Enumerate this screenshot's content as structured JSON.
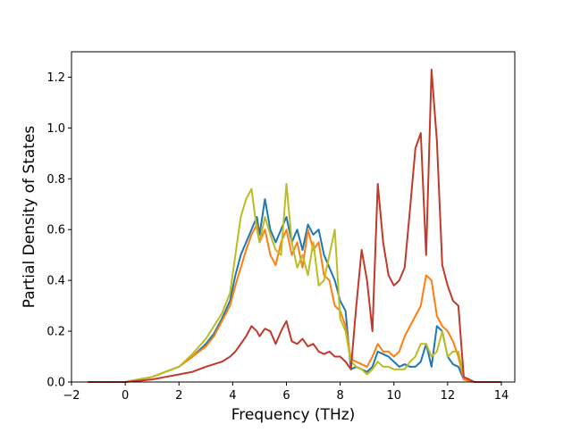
{
  "chart_data": {
    "type": "line",
    "title": "",
    "xlabel": "Frequency (THz)",
    "ylabel": "Partial Density of States",
    "xlim": [
      -2,
      14.5
    ],
    "ylim": [
      0,
      1.3
    ],
    "xticks": [
      "−2",
      "0",
      "2",
      "4",
      "6",
      "8",
      "10",
      "12",
      "14"
    ],
    "xtick_values": [
      -2,
      0,
      2,
      4,
      6,
      8,
      10,
      12,
      14
    ],
    "yticks": [
      "0.0",
      "0.2",
      "0.4",
      "0.6",
      "0.8",
      "1.0",
      "1.2"
    ],
    "ytick_values": [
      0,
      0.2,
      0.4,
      0.6,
      0.8,
      1.0,
      1.2
    ],
    "grid": false,
    "legend": "none",
    "series": [
      {
        "color": "#1f77b4",
        "x": [
          -1.4,
          0,
          0.5,
          1,
          1.5,
          2,
          2.5,
          3,
          3.3,
          3.6,
          3.9,
          4.1,
          4.3,
          4.5,
          4.7,
          4.9,
          5.0,
          5.2,
          5.4,
          5.6,
          5.8,
          6.0,
          6.2,
          6.4,
          6.6,
          6.8,
          7.0,
          7.2,
          7.4,
          7.6,
          7.8,
          8.0,
          8.2,
          8.4,
          8.6,
          8.8,
          9.0,
          9.2,
          9.4,
          9.6,
          9.8,
          10.0,
          10.2,
          10.4,
          10.6,
          10.8,
          11.0,
          11.2,
          11.4,
          11.6,
          11.8,
          12.0,
          12.2,
          12.4,
          12.6,
          13.0,
          14.0
        ],
        "y": [
          0.0,
          0.0,
          0.01,
          0.02,
          0.04,
          0.06,
          0.1,
          0.15,
          0.19,
          0.25,
          0.32,
          0.42,
          0.5,
          0.55,
          0.6,
          0.65,
          0.58,
          0.72,
          0.6,
          0.55,
          0.6,
          0.65,
          0.55,
          0.6,
          0.52,
          0.62,
          0.58,
          0.6,
          0.5,
          0.45,
          0.4,
          0.32,
          0.28,
          0.05,
          0.06,
          0.05,
          0.04,
          0.06,
          0.12,
          0.11,
          0.1,
          0.08,
          0.06,
          0.07,
          0.06,
          0.06,
          0.08,
          0.15,
          0.06,
          0.22,
          0.2,
          0.1,
          0.07,
          0.06,
          0.01,
          0.0,
          0.0
        ]
      },
      {
        "color": "#ff7f0e",
        "x": [
          -1.4,
          0,
          0.5,
          1,
          1.5,
          2,
          2.5,
          3,
          3.3,
          3.6,
          3.9,
          4.1,
          4.3,
          4.5,
          4.7,
          4.9,
          5.0,
          5.2,
          5.4,
          5.6,
          5.8,
          6.0,
          6.2,
          6.4,
          6.6,
          6.8,
          7.0,
          7.2,
          7.4,
          7.6,
          7.8,
          8.0,
          8.2,
          8.4,
          8.6,
          8.8,
          9.0,
          9.2,
          9.4,
          9.6,
          9.8,
          10.0,
          10.2,
          10.4,
          10.6,
          10.8,
          11.0,
          11.2,
          11.4,
          11.6,
          11.8,
          12.0,
          12.2,
          12.4,
          12.6,
          13.0,
          14.0
        ],
        "y": [
          0.0,
          0.0,
          0.01,
          0.02,
          0.04,
          0.06,
          0.1,
          0.14,
          0.18,
          0.24,
          0.3,
          0.38,
          0.45,
          0.52,
          0.58,
          0.62,
          0.55,
          0.6,
          0.5,
          0.46,
          0.55,
          0.6,
          0.5,
          0.55,
          0.45,
          0.6,
          0.52,
          0.55,
          0.42,
          0.4,
          0.3,
          0.28,
          0.22,
          0.09,
          0.08,
          0.07,
          0.06,
          0.1,
          0.15,
          0.12,
          0.12,
          0.1,
          0.12,
          0.18,
          0.22,
          0.26,
          0.3,
          0.42,
          0.4,
          0.26,
          0.22,
          0.2,
          0.16,
          0.1,
          0.01,
          0.0,
          0.0
        ]
      },
      {
        "color": "#bcbd22",
        "x": [
          -1.4,
          0,
          0.5,
          1,
          1.5,
          2,
          2.5,
          3,
          3.3,
          3.6,
          3.9,
          4.1,
          4.3,
          4.5,
          4.7,
          4.9,
          5.0,
          5.2,
          5.4,
          5.6,
          5.8,
          6.0,
          6.2,
          6.4,
          6.6,
          6.8,
          7.0,
          7.2,
          7.4,
          7.6,
          7.8,
          8.0,
          8.2,
          8.4,
          8.6,
          8.8,
          9.0,
          9.2,
          9.4,
          9.6,
          9.8,
          10.0,
          10.2,
          10.4,
          10.6,
          10.8,
          11.0,
          11.2,
          11.4,
          11.6,
          11.8,
          12.0,
          12.2,
          12.4,
          12.6,
          13.0,
          14.0
        ],
        "y": [
          0.0,
          0.0,
          0.01,
          0.02,
          0.04,
          0.06,
          0.11,
          0.17,
          0.22,
          0.27,
          0.35,
          0.5,
          0.65,
          0.72,
          0.76,
          0.6,
          0.55,
          0.65,
          0.58,
          0.52,
          0.5,
          0.78,
          0.55,
          0.45,
          0.5,
          0.42,
          0.55,
          0.38,
          0.4,
          0.5,
          0.6,
          0.25,
          0.2,
          0.08,
          0.06,
          0.05,
          0.03,
          0.05,
          0.08,
          0.06,
          0.06,
          0.05,
          0.05,
          0.05,
          0.08,
          0.1,
          0.15,
          0.15,
          0.1,
          0.12,
          0.2,
          0.1,
          0.12,
          0.12,
          0.02,
          0.0,
          0.0
        ]
      },
      {
        "color": "#c0392b",
        "x": [
          -1.4,
          0,
          0.5,
          1,
          1.5,
          2,
          2.5,
          3,
          3.3,
          3.6,
          3.9,
          4.1,
          4.3,
          4.5,
          4.7,
          4.9,
          5.0,
          5.2,
          5.4,
          5.6,
          5.8,
          6.0,
          6.2,
          6.4,
          6.6,
          6.8,
          7.0,
          7.2,
          7.4,
          7.6,
          7.8,
          8.0,
          8.2,
          8.4,
          8.6,
          8.8,
          9.0,
          9.2,
          9.4,
          9.6,
          9.8,
          10.0,
          10.2,
          10.4,
          10.6,
          10.8,
          11.0,
          11.2,
          11.4,
          11.6,
          11.8,
          12.0,
          12.2,
          12.4,
          12.6,
          13.0,
          14.0
        ],
        "y": [
          0.0,
          0.0,
          0.005,
          0.01,
          0.02,
          0.03,
          0.04,
          0.06,
          0.07,
          0.08,
          0.1,
          0.12,
          0.15,
          0.18,
          0.22,
          0.2,
          0.18,
          0.21,
          0.2,
          0.15,
          0.2,
          0.24,
          0.16,
          0.15,
          0.17,
          0.14,
          0.15,
          0.12,
          0.11,
          0.12,
          0.1,
          0.1,
          0.08,
          0.05,
          0.3,
          0.52,
          0.4,
          0.2,
          0.78,
          0.55,
          0.42,
          0.38,
          0.4,
          0.45,
          0.68,
          0.92,
          0.98,
          0.5,
          1.23,
          0.95,
          0.46,
          0.38,
          0.32,
          0.3,
          0.02,
          0.0,
          0.0
        ]
      }
    ]
  }
}
